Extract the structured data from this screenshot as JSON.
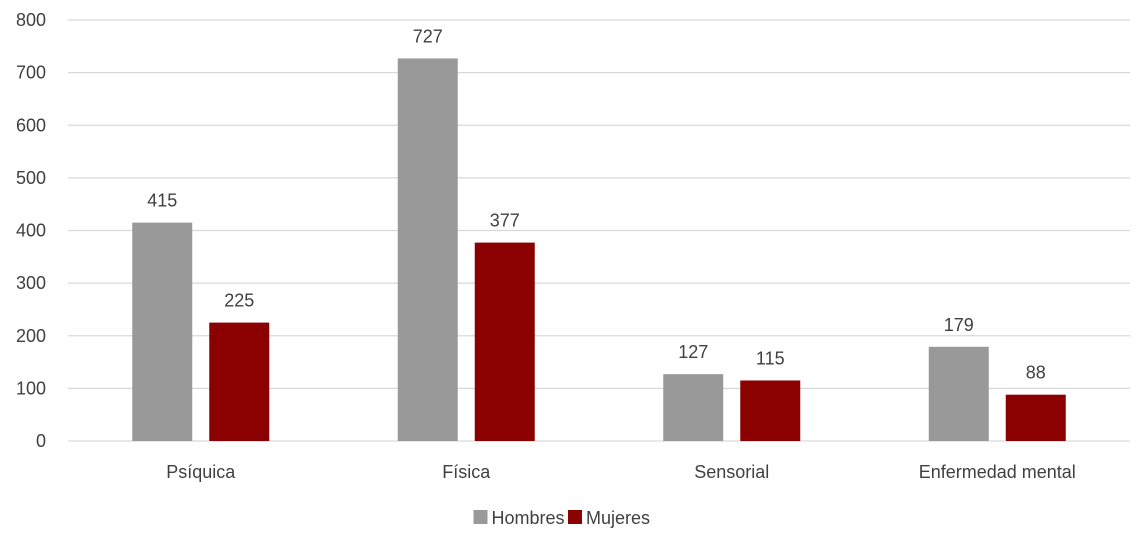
{
  "chart_data": {
    "type": "bar",
    "title": "",
    "xlabel": "",
    "ylabel": "",
    "categories": [
      "Psíquica",
      "Física",
      "Sensorial",
      "Enfermedad mental"
    ],
    "series": [
      {
        "name": "Hombres",
        "values": [
          415,
          727,
          127,
          179
        ],
        "color": "#999999"
      },
      {
        "name": "Mujeres",
        "values": [
          225,
          377,
          115,
          88
        ],
        "color": "#8b0000"
      }
    ],
    "ylim": [
      0,
      800
    ],
    "yticks": [
      0,
      100,
      200,
      300,
      400,
      500,
      600,
      700,
      800
    ],
    "grid": true,
    "legend": "bottom",
    "gridline_color": "#d9d9d9"
  }
}
